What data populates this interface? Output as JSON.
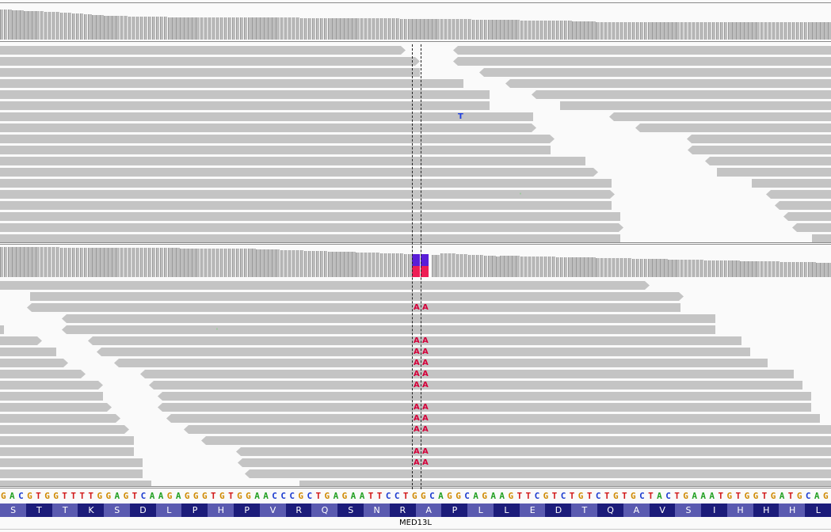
{
  "colors": {
    "read": "#c4c4c4",
    "coverage": "#aaaaaa",
    "mismatch_A": "#d4003a",
    "mismatch_T": "#2040e0",
    "mismatch_G": "#9aca9a",
    "base_A": "#22a022",
    "base_C": "#1a3ad0",
    "base_G": "#d08a00",
    "base_T": "#d21a1a",
    "aa_dark": "#1c1c7a",
    "aa_light": "#5a5ab0",
    "allele_upper": "#5a1ed8",
    "allele_lower": "#ee1e55"
  },
  "upper_panel": {
    "coverage_heights": [
      38,
      38,
      38,
      37,
      37,
      37,
      36,
      36,
      36,
      36,
      36,
      35,
      35,
      35,
      35,
      34,
      34,
      34,
      33,
      33,
      33,
      32,
      32,
      31,
      31,
      31,
      30,
      30,
      30,
      30,
      30,
      30,
      29,
      29,
      29,
      29,
      29,
      29,
      29,
      29,
      29,
      29,
      28,
      28,
      28,
      28,
      28,
      28,
      28,
      28,
      28,
      28,
      28,
      28,
      28,
      28,
      28,
      28,
      28,
      28,
      28,
      28,
      28,
      28,
      28,
      28,
      28,
      28,
      28,
      28,
      28,
      28,
      28,
      28,
      28,
      27,
      27,
      27,
      27,
      27,
      27,
      27,
      27,
      27,
      27,
      27,
      27,
      27,
      27,
      27,
      27,
      27,
      27,
      27,
      27,
      27,
      27,
      27,
      27,
      27,
      26,
      26,
      26,
      26,
      26,
      26,
      26,
      26,
      26,
      26,
      26,
      26,
      26,
      26,
      26,
      26,
      26,
      26,
      25,
      25,
      25,
      25,
      25,
      25,
      25,
      25,
      25,
      25,
      25,
      25,
      24,
      24,
      24,
      24,
      24,
      24,
      24,
      24,
      24,
      24,
      24,
      24,
      24,
      23,
      23,
      23,
      23,
      23,
      23,
      22,
      22,
      22,
      22,
      22,
      22,
      22,
      22,
      22,
      22,
      22,
      22,
      22,
      22,
      22,
      22,
      22,
      22,
      22,
      22,
      22,
      22,
      22,
      22,
      22,
      22,
      22,
      22,
      22,
      22,
      22,
      22,
      22,
      22,
      22,
      22,
      22,
      22,
      22,
      22,
      22,
      22,
      22,
      22,
      22,
      22,
      22,
      22,
      22,
      22,
      22,
      22,
      22,
      22,
      22,
      22,
      22,
      22,
      22,
      22,
      22,
      22
    ],
    "reads": [
      {
        "s": -10,
        "e": 512,
        "d": "f"
      },
      {
        "s": 572,
        "e": 1060,
        "d": "r"
      },
      {
        "s": -10,
        "e": 530,
        "d": "f"
      },
      {
        "s": 572,
        "e": 1060,
        "d": "r"
      },
      {
        "s": -10,
        "e": 530,
        "d": "p"
      },
      {
        "s": 605,
        "e": 1060,
        "d": "r"
      },
      {
        "s": -10,
        "e": 585,
        "d": "p"
      },
      {
        "s": 638,
        "e": 1060,
        "d": "r"
      },
      {
        "s": -10,
        "e": 618,
        "d": "p"
      },
      {
        "s": 671,
        "e": 1060,
        "d": "r"
      },
      {
        "s": -10,
        "e": 618,
        "d": "p"
      },
      {
        "s": 707,
        "e": 1060,
        "d": "p"
      },
      {
        "s": -10,
        "e": 673,
        "d": "p"
      },
      {
        "s": 769,
        "e": 1060,
        "d": "r"
      },
      {
        "s": -10,
        "e": 677,
        "d": "f"
      },
      {
        "s": 802,
        "e": 1060,
        "d": "r"
      },
      {
        "s": -10,
        "e": 700,
        "d": "f"
      },
      {
        "s": 867,
        "e": 1060,
        "d": "r"
      },
      {
        "s": -10,
        "e": 695,
        "d": "p"
      },
      {
        "s": 868,
        "e": 1060,
        "d": "r"
      },
      {
        "s": -10,
        "e": 739,
        "d": "p"
      },
      {
        "s": 890,
        "e": 1060,
        "d": "r"
      },
      {
        "s": -10,
        "e": 755,
        "d": "f"
      },
      {
        "s": 905,
        "e": 1060,
        "d": "p"
      },
      {
        "s": -10,
        "e": 772,
        "d": "p"
      },
      {
        "s": 949,
        "e": 1060,
        "d": "p"
      },
      {
        "s": -10,
        "e": 776,
        "d": "f"
      },
      {
        "s": 967,
        "e": 1060,
        "d": "r"
      },
      {
        "s": -10,
        "e": 772,
        "d": "p"
      },
      {
        "s": 978,
        "e": 1060,
        "d": "r"
      },
      {
        "s": -10,
        "e": 783,
        "d": "p"
      },
      {
        "s": 989,
        "e": 1060,
        "d": "r"
      },
      {
        "s": -10,
        "e": 787,
        "d": "f"
      },
      {
        "s": 1000,
        "e": 1060,
        "d": "r"
      },
      {
        "s": -10,
        "e": 783,
        "d": "p"
      },
      {
        "s": 1025,
        "e": 1060,
        "d": "p"
      }
    ],
    "mismatches": [
      {
        "row": 6,
        "x": 578,
        "base": "T"
      },
      {
        "row": 13,
        "x": 655,
        "base": "G"
      }
    ]
  },
  "lower_panel": {
    "allele_bar_label": "",
    "reads": [
      {
        "s": -10,
        "e": 820,
        "d": "f",
        "row": 0
      },
      {
        "s": 38,
        "e": 863,
        "d": "f",
        "row": 1
      },
      {
        "s": 34,
        "e": 859,
        "d": "r",
        "row": 2
      },
      {
        "s": 78,
        "e": 903,
        "d": "r",
        "row": 3
      },
      {
        "s": 0,
        "e": 5,
        "d": "p",
        "row": 4
      },
      {
        "s": 78,
        "e": 903,
        "d": "r",
        "row": 4
      },
      {
        "s": -10,
        "e": 53,
        "d": "f",
        "row": 5
      },
      {
        "s": 111,
        "e": 936,
        "d": "r",
        "row": 5
      },
      {
        "s": -10,
        "e": 71,
        "d": "p",
        "row": 6
      },
      {
        "s": 122,
        "e": 947,
        "d": "r",
        "row": 6
      },
      {
        "s": -10,
        "e": 86,
        "d": "f",
        "row": 7
      },
      {
        "s": 144,
        "e": 969,
        "d": "r",
        "row": 7
      },
      {
        "s": -10,
        "e": 108,
        "d": "f",
        "row": 8
      },
      {
        "s": 177,
        "e": 1002,
        "d": "r",
        "row": 8
      },
      {
        "s": -10,
        "e": 130,
        "d": "f",
        "row": 9
      },
      {
        "s": 188,
        "e": 1013,
        "d": "r",
        "row": 9
      },
      {
        "s": -10,
        "e": 130,
        "d": "p",
        "row": 10
      },
      {
        "s": 199,
        "e": 1024,
        "d": "r",
        "row": 10
      },
      {
        "s": -10,
        "e": 141,
        "d": "f",
        "row": 11
      },
      {
        "s": 199,
        "e": 1024,
        "d": "r",
        "row": 11
      },
      {
        "s": -10,
        "e": 152,
        "d": "f",
        "row": 12
      },
      {
        "s": 210,
        "e": 1035,
        "d": "r",
        "row": 12
      },
      {
        "s": -10,
        "e": 163,
        "d": "f",
        "row": 13
      },
      {
        "s": 232,
        "e": 1057,
        "d": "r",
        "row": 13
      },
      {
        "s": -10,
        "e": 169,
        "d": "p",
        "row": 14
      },
      {
        "s": 254,
        "e": 1060,
        "d": "r",
        "row": 14
      },
      {
        "s": -10,
        "e": 169,
        "d": "p",
        "row": 15
      },
      {
        "s": 298,
        "e": 1060,
        "d": "r",
        "row": 15
      },
      {
        "s": -10,
        "e": 180,
        "d": "p",
        "row": 16
      },
      {
        "s": 300,
        "e": 1060,
        "d": "r",
        "row": 16
      },
      {
        "s": -10,
        "e": 180,
        "d": "p",
        "row": 17
      },
      {
        "s": 309,
        "e": 1060,
        "d": "r",
        "row": 17
      },
      {
        "s": -10,
        "e": 191,
        "d": "p",
        "row": 18
      },
      {
        "s": 378,
        "e": 1060,
        "d": "p",
        "row": 18
      }
    ],
    "mismatch_rows": [
      2,
      5,
      6,
      7,
      8,
      9,
      11,
      12,
      13,
      15,
      16
    ],
    "mismatch_base": "A",
    "extra_mismatches": [
      {
        "row": 4,
        "x": 272,
        "base": "G"
      }
    ]
  },
  "reference": {
    "sequence": "GACGTGGTTTTGGAGTCAAGAGGGTGTGGAACCCGCTGAGAATTCCTGGCAGGCAGAAGTTCGTCTGTCTGTGCTACTGAAATGTGGTGATGCAG"
  },
  "amino_acids": [
    "S",
    "T",
    "T",
    "K",
    "S",
    "D",
    "L",
    "P",
    "H",
    "P",
    "V",
    "R",
    "Q",
    "S",
    "N",
    "R",
    "A",
    "P",
    "L",
    "L",
    "E",
    "D",
    "T",
    "Q",
    "A",
    "V",
    "S",
    "I",
    "H",
    "H",
    "H",
    "L"
  ],
  "gene": {
    "name": "MED13L"
  }
}
